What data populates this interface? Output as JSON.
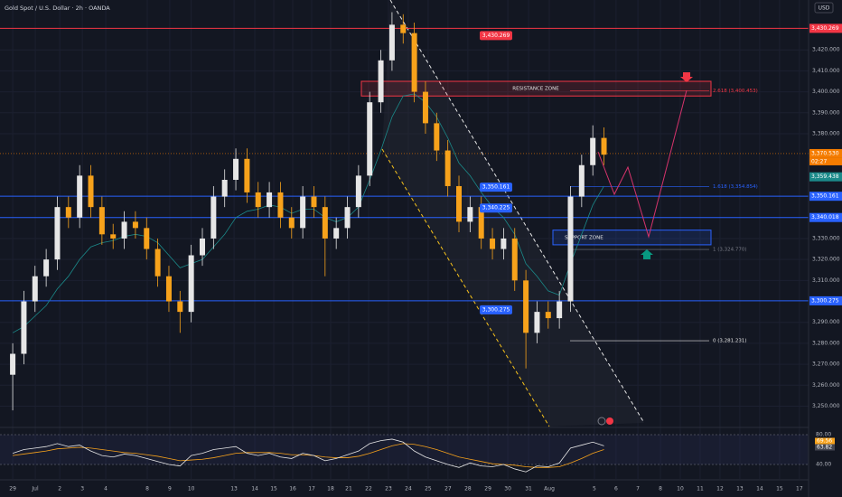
{
  "chart_data": {
    "type": "candlestick",
    "title": "Gold Spot / U.S. Dollar · 2h · OANDA",
    "currency": "USD",
    "up_color": "#e6e6e6",
    "down_color": "#f7a21b",
    "xlim": [
      -0.57,
      35.67
    ],
    "ylim": [
      3240.3,
      3443.8
    ],
    "x": [
      0,
      0.5,
      1,
      1.5,
      2,
      2.5,
      3,
      3.5,
      4,
      4.5,
      5,
      5.5,
      6,
      6.5,
      7,
      7.5,
      8,
      8.5,
      9,
      9.5,
      10,
      10.5,
      11,
      11.5,
      12,
      12.5,
      13,
      13.5,
      14,
      14.5,
      15,
      15.5,
      16,
      16.5,
      17,
      17.5,
      18,
      18.5,
      19,
      19.5,
      20,
      20.5,
      21,
      21.5,
      22,
      22.5,
      23,
      23.5,
      24,
      24.5,
      25,
      25.5,
      26,
      26.5
    ],
    "open": [
      3265,
      3275,
      3300,
      3312,
      3320,
      3345,
      3340,
      3360,
      3345,
      3332,
      3330,
      3338,
      3335,
      3325,
      3312,
      3300,
      3295,
      3322,
      3330,
      3350,
      3358,
      3368,
      3352,
      3345,
      3352,
      3340,
      3335,
      3350,
      3345,
      3330,
      3335,
      3345,
      3360,
      3395,
      3415,
      3432,
      3428,
      3400,
      3385,
      3372,
      3355,
      3338,
      3345,
      3330,
      3325,
      3330,
      3310,
      3285,
      3295,
      3292,
      3300,
      3350,
      3365,
      3378
    ],
    "high": [
      3280,
      3305,
      3317,
      3325,
      3350,
      3350,
      3365,
      3365,
      3350,
      3337,
      3343,
      3343,
      3340,
      3330,
      3317,
      3305,
      3327,
      3335,
      3355,
      3363,
      3373,
      3373,
      3357,
      3357,
      3357,
      3345,
      3355,
      3355,
      3350,
      3340,
      3350,
      3365,
      3400,
      3420,
      3438,
      3437,
      3433,
      3405,
      3390,
      3377,
      3360,
      3350,
      3350,
      3335,
      3335,
      3335,
      3315,
      3300,
      3300,
      3305,
      3355,
      3370,
      3384,
      3383
    ],
    "low": [
      3248,
      3270,
      3295,
      3307,
      3315,
      3335,
      3335,
      3340,
      3327,
      3325,
      3325,
      3330,
      3320,
      3307,
      3295,
      3285,
      3290,
      3317,
      3325,
      3345,
      3353,
      3347,
      3340,
      3340,
      3335,
      3330,
      3330,
      3340,
      3312,
      3325,
      3330,
      3340,
      3355,
      3390,
      3410,
      3423,
      3395,
      3380,
      3367,
      3350,
      3333,
      3333,
      3325,
      3320,
      3320,
      3305,
      3268,
      3280,
      3287,
      3287,
      3295,
      3345,
      3360,
      3365
    ],
    "close": [
      3275,
      3300,
      3312,
      3320,
      3345,
      3340,
      3360,
      3345,
      3332,
      3330,
      3338,
      3335,
      3325,
      3312,
      3300,
      3295,
      3322,
      3330,
      3350,
      3358,
      3368,
      3352,
      3345,
      3352,
      3340,
      3335,
      3350,
      3345,
      3330,
      3335,
      3345,
      3360,
      3395,
      3415,
      3432,
      3428,
      3400,
      3385,
      3372,
      3355,
      3338,
      3345,
      3330,
      3325,
      3330,
      3310,
      3285,
      3295,
      3292,
      3300,
      3350,
      3365,
      3378,
      3370
    ],
    "ema": {
      "color": "#1b8a8a",
      "values": [
        3285,
        3288,
        3293,
        3298,
        3306,
        3312,
        3320,
        3326,
        3328,
        3329,
        3331,
        3332,
        3331,
        3328,
        3322,
        3316,
        3318,
        3320,
        3326,
        3332,
        3340,
        3343,
        3344,
        3346,
        3345,
        3342,
        3344,
        3344,
        3340,
        3338,
        3340,
        3345,
        3358,
        3372,
        3388,
        3398,
        3399,
        3395,
        3388,
        3378,
        3366,
        3360,
        3352,
        3345,
        3340,
        3332,
        3318,
        3312,
        3305,
        3303,
        3318,
        3332,
        3346,
        3355
      ]
    },
    "yticks": [
      {
        "value": 3420,
        "label": "3,420.000"
      },
      {
        "value": 3410,
        "label": "3,410.000"
      },
      {
        "value": 3400,
        "label": "3,400.000"
      },
      {
        "value": 3390,
        "label": "3,390.000"
      },
      {
        "value": 3380,
        "label": "3,380.000"
      },
      {
        "value": 3330,
        "label": "3,330.000"
      },
      {
        "value": 3320,
        "label": "3,320.000"
      },
      {
        "value": 3310,
        "label": "3,310.000"
      },
      {
        "value": 3290,
        "label": "3,290.000"
      },
      {
        "value": 3280,
        "label": "3,280.000"
      },
      {
        "value": 3270,
        "label": "3,270.000"
      },
      {
        "value": 3260,
        "label": "3,260.000"
      },
      {
        "value": 3250,
        "label": "3,250.000"
      }
    ],
    "xticks": [
      {
        "value": 0,
        "label": "29"
      },
      {
        "value": 1.01,
        "label": "Jul"
      },
      {
        "value": 2.11,
        "label": "2"
      },
      {
        "value": 3.12,
        "label": "3"
      },
      {
        "value": 4.17,
        "label": "4"
      },
      {
        "value": 6.03,
        "label": "8"
      },
      {
        "value": 7.04,
        "label": "9"
      },
      {
        "value": 8.0,
        "label": "10"
      },
      {
        "value": 9.92,
        "label": "13"
      },
      {
        "value": 10.85,
        "label": "14"
      },
      {
        "value": 11.7,
        "label": "15"
      },
      {
        "value": 12.55,
        "label": "16"
      },
      {
        "value": 13.4,
        "label": "17"
      },
      {
        "value": 14.25,
        "label": "18"
      },
      {
        "value": 15.06,
        "label": "21"
      },
      {
        "value": 15.95,
        "label": "22"
      },
      {
        "value": 16.84,
        "label": "23"
      },
      {
        "value": 17.73,
        "label": "24"
      },
      {
        "value": 18.62,
        "label": "25"
      },
      {
        "value": 19.51,
        "label": "27"
      },
      {
        "value": 20.4,
        "label": "28"
      },
      {
        "value": 21.3,
        "label": "29"
      },
      {
        "value": 22.19,
        "label": "30"
      },
      {
        "value": 23.12,
        "label": "31"
      },
      {
        "value": 24.05,
        "label": "Aug"
      },
      {
        "value": 26.07,
        "label": "5"
      },
      {
        "value": 27.04,
        "label": "6"
      },
      {
        "value": 28.02,
        "label": "7"
      },
      {
        "value": 29.03,
        "label": "8"
      },
      {
        "value": 29.92,
        "label": "10"
      },
      {
        "value": 30.81,
        "label": "11"
      },
      {
        "value": 31.7,
        "label": "12"
      },
      {
        "value": 32.59,
        "label": "13"
      },
      {
        "value": 33.48,
        "label": "14"
      },
      {
        "value": 34.37,
        "label": "15"
      },
      {
        "value": 35.26,
        "label": "17"
      }
    ],
    "levels": [
      {
        "value": 3430.269,
        "label": "3,430.269",
        "color": "#f23645"
      },
      {
        "value": 3370.53,
        "label": "3,370.530",
        "color": "#f57c00"
      },
      {
        "value": 3359.438,
        "label": "3,359.438",
        "color": "#1b8a8a"
      },
      {
        "value": 3350.161,
        "label": "3,350.161",
        "color": "#2962ff"
      },
      {
        "value": 3340.018,
        "label": "3,340.018",
        "color": "#2962ff"
      },
      {
        "value": 3300.275,
        "label": "3,300.275",
        "color": "#2962ff"
      }
    ],
    "countdown": "02:27",
    "callouts": [
      {
        "value": 3430.269,
        "label": "3,430.269",
        "color": "#f23645"
      },
      {
        "value": 3350.161,
        "label": "3,350.161",
        "color": "#2962ff"
      },
      {
        "value": 3340.225,
        "label": "3,340.225",
        "color": "#2962ff"
      },
      {
        "value": 3300.275,
        "label": "3,300.275",
        "color": "#2962ff"
      }
    ],
    "fib": [
      {
        "value": 3400.453,
        "label": "2.618 (3,400.453)",
        "color": "#f23645"
      },
      {
        "value": 3354.854,
        "label": "1.618 (3,354.854)",
        "color": "#2962ff"
      },
      {
        "value": 3324.77,
        "label": "1 (3,324.770)",
        "color": "#787b86"
      },
      {
        "value": 3281.231,
        "label": "0 (3,281.231)",
        "color": "#e6e6e6"
      }
    ],
    "zones": [
      {
        "low": 3398,
        "high": 3405,
        "label": "RESISTANCE ZONE",
        "color": "#f23645"
      },
      {
        "low": 3327,
        "high": 3334,
        "label": "SUPPORT ZONE",
        "color": "#2962ff"
      }
    ],
    "rsi": {
      "color": "#e6e6e6",
      "ma_color": "#f7a21b",
      "ylim": [
        20.6,
        88.5
      ],
      "yticks": [
        {
          "value": 80,
          "label": "80.00"
        },
        {
          "value": 40,
          "label": "40.00"
        }
      ],
      "badges": [
        "69.56",
        "63.82"
      ],
      "values": [
        55,
        60,
        62,
        64,
        68,
        64,
        66,
        58,
        52,
        50,
        54,
        52,
        48,
        44,
        40,
        38,
        52,
        55,
        60,
        62,
        64,
        55,
        52,
        55,
        50,
        48,
        55,
        52,
        45,
        48,
        53,
        58,
        68,
        72,
        74,
        70,
        58,
        50,
        45,
        40,
        36,
        42,
        38,
        37,
        40,
        34,
        30,
        38,
        37,
        42,
        62,
        66,
        70,
        65
      ],
      "ma": [
        52,
        54,
        56,
        58,
        61,
        62,
        63,
        62,
        60,
        58,
        56,
        55,
        53,
        51,
        48,
        45,
        46,
        47,
        49,
        52,
        55,
        56,
        56,
        56,
        55,
        53,
        53,
        52,
        50,
        49,
        49,
        51,
        55,
        60,
        65,
        68,
        67,
        64,
        60,
        55,
        50,
        47,
        44,
        41,
        40,
        39,
        37,
        36,
        36,
        37,
        42,
        48,
        55,
        60
      ]
    }
  }
}
